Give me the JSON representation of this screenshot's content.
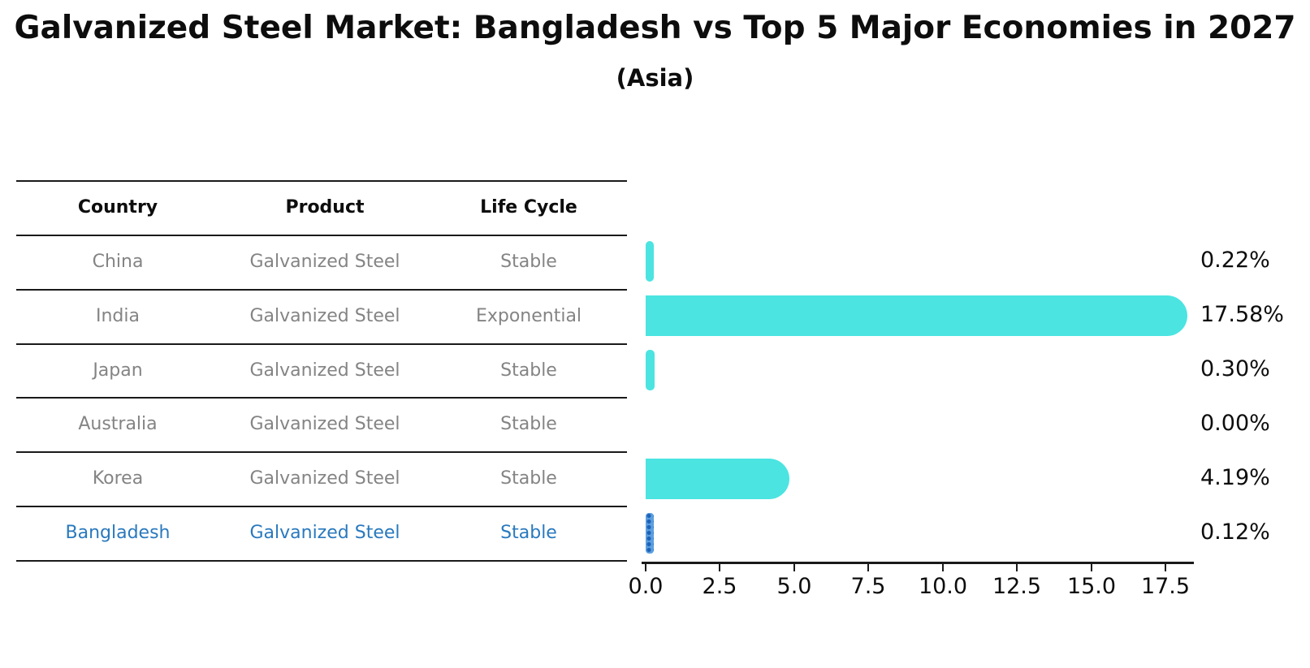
{
  "title": "Galvanized Steel Market: Bangladesh vs Top 5 Major Economies in 2027",
  "subtitle": "(Asia)",
  "table": {
    "headers": [
      "Country",
      "Product",
      "Life Cycle"
    ],
    "rows": [
      {
        "country": "China",
        "product": "Galvanized Steel",
        "life_cycle": "Stable",
        "highlight": false
      },
      {
        "country": "India",
        "product": "Galvanized Steel",
        "life_cycle": "Exponential",
        "highlight": false
      },
      {
        "country": "Japan",
        "product": "Galvanized Steel",
        "life_cycle": "Stable",
        "highlight": false
      },
      {
        "country": "Australia",
        "product": "Galvanized Steel",
        "life_cycle": "Stable",
        "highlight": false
      },
      {
        "country": "Korea",
        "product": "Galvanized Steel",
        "life_cycle": "Stable",
        "highlight": false
      },
      {
        "country": "Bangladesh",
        "product": "Galvanized Steel",
        "life_cycle": "Stable",
        "highlight": true
      }
    ]
  },
  "chart_data": {
    "type": "bar",
    "orientation": "horizontal",
    "title": "Galvanized Steel Market: Bangladesh vs Top 5 Major Economies in 2027 (Asia)",
    "categories": [
      "China",
      "India",
      "Japan",
      "Australia",
      "Korea",
      "Bangladesh"
    ],
    "values": [
      0.22,
      17.58,
      0.3,
      0.0,
      4.19,
      0.12
    ],
    "value_labels": [
      "0.22%",
      "17.58%",
      "0.30%",
      "0.00%",
      "4.19%",
      "0.12%"
    ],
    "highlight_index": 5,
    "x_ticks": [
      0.0,
      2.5,
      5.0,
      7.5,
      10.0,
      12.5,
      15.0,
      17.5
    ],
    "x_tick_labels": [
      "0.0",
      "2.5",
      "5.0",
      "7.5",
      "10.0",
      "12.5",
      "15.0",
      "17.5"
    ],
    "xlim": [
      0,
      18.5
    ],
    "grid": false,
    "legend": false,
    "colors": {
      "bar": "#4BE4E1",
      "highlight_bar_fill": "#5D9FE0",
      "highlight_bar_dots": "#1C63B7",
      "highlight_text": "#2979BE",
      "table_text": "#848484",
      "axis_text": "#0d0d0d"
    }
  }
}
